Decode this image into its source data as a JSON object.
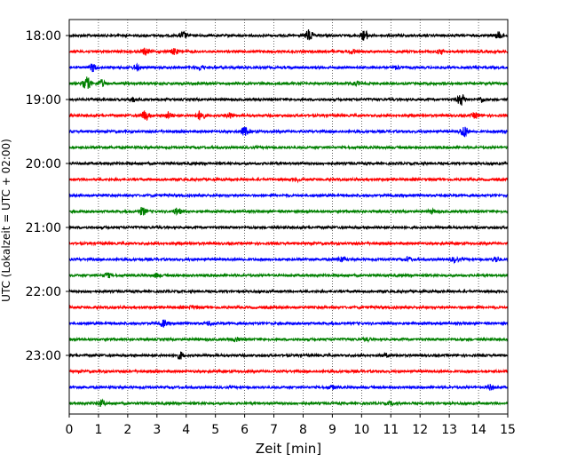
{
  "chart_data": {
    "type": "line",
    "title": "",
    "xlabel": "Zeit  [min]",
    "ylabel": "UTC (Lokalzeit = UTC + 02:00)",
    "xlim": [
      0,
      15
    ],
    "x_ticks": [
      "0",
      "1",
      "2",
      "3",
      "4",
      "5",
      "6",
      "7",
      "8",
      "9",
      "10",
      "11",
      "12",
      "13",
      "14",
      "15"
    ],
    "y_ticks": [
      {
        "label": "18:00",
        "row": 0
      },
      {
        "label": "19:00",
        "row": 4
      },
      {
        "label": "20:00",
        "row": 8
      },
      {
        "label": "21:00",
        "row": 12
      },
      {
        "label": "22:00",
        "row": 16
      },
      {
        "label": "23:00",
        "row": 20
      }
    ],
    "grid": "vertical dotted",
    "row_colors": [
      "#000000",
      "#ff0000",
      "#0000ff",
      "#008000"
    ],
    "rows": [
      {
        "start": "18:00",
        "color": "#000000",
        "events": [
          [
            3.9,
            0.4
          ],
          [
            8.2,
            0.7
          ],
          [
            10.1,
            0.6
          ],
          [
            14.7,
            0.4
          ]
        ]
      },
      {
        "start": "18:15",
        "color": "#ff0000",
        "events": [
          [
            2.6,
            0.4
          ],
          [
            3.6,
            0.35
          ],
          [
            9.7,
            0.25
          ],
          [
            12.7,
            0.25
          ]
        ]
      },
      {
        "start": "18:30",
        "color": "#0000ff",
        "events": [
          [
            0.8,
            0.45
          ],
          [
            2.3,
            0.3
          ],
          [
            4.5,
            0.25
          ],
          [
            11.2,
            0.2
          ]
        ]
      },
      {
        "start": "18:45",
        "color": "#008000",
        "events": [
          [
            0.6,
            0.8
          ],
          [
            1.1,
            0.4
          ],
          [
            9.8,
            0.2
          ]
        ]
      },
      {
        "start": "19:00",
        "color": "#000000",
        "events": [
          [
            2.2,
            0.25
          ],
          [
            13.4,
            0.7
          ],
          [
            14.1,
            0.3
          ]
        ]
      },
      {
        "start": "19:15",
        "color": "#ff0000",
        "events": [
          [
            2.6,
            0.6
          ],
          [
            3.4,
            0.4
          ],
          [
            4.5,
            0.6
          ],
          [
            5.5,
            0.3
          ],
          [
            13.9,
            0.3
          ]
        ]
      },
      {
        "start": "19:30",
        "color": "#0000ff",
        "events": [
          [
            6.0,
            0.5
          ],
          [
            13.5,
            0.7
          ],
          [
            14.9,
            0.2
          ]
        ]
      },
      {
        "start": "19:45",
        "color": "#008000",
        "events": []
      },
      {
        "start": "20:00",
        "color": "#000000",
        "events": []
      },
      {
        "start": "20:15",
        "color": "#ff0000",
        "events": [
          [
            7.8,
            0.15
          ]
        ]
      },
      {
        "start": "20:30",
        "color": "#0000ff",
        "events": []
      },
      {
        "start": "20:45",
        "color": "#008000",
        "events": [
          [
            2.5,
            0.45
          ],
          [
            3.7,
            0.4
          ],
          [
            12.4,
            0.2
          ]
        ]
      },
      {
        "start": "21:00",
        "color": "#000000",
        "events": []
      },
      {
        "start": "21:15",
        "color": "#ff0000",
        "events": []
      },
      {
        "start": "21:30",
        "color": "#0000ff",
        "events": [
          [
            9.3,
            0.3
          ],
          [
            11.6,
            0.25
          ],
          [
            13.2,
            0.3
          ],
          [
            14.6,
            0.35
          ]
        ]
      },
      {
        "start": "21:45",
        "color": "#008000",
        "events": [
          [
            1.3,
            0.25
          ],
          [
            3.0,
            0.2
          ]
        ]
      },
      {
        "start": "22:00",
        "color": "#000000",
        "events": []
      },
      {
        "start": "22:15",
        "color": "#ff0000",
        "events": [
          [
            4.2,
            0.15
          ]
        ]
      },
      {
        "start": "22:30",
        "color": "#0000ff",
        "events": [
          [
            3.2,
            0.4
          ],
          [
            4.8,
            0.25
          ]
        ]
      },
      {
        "start": "22:45",
        "color": "#008000",
        "events": [
          [
            5.7,
            0.25
          ],
          [
            10.2,
            0.15
          ]
        ]
      },
      {
        "start": "23:00",
        "color": "#000000",
        "events": [
          [
            3.8,
            0.4
          ],
          [
            10.8,
            0.2
          ]
        ]
      },
      {
        "start": "23:15",
        "color": "#ff0000",
        "events": []
      },
      {
        "start": "23:30",
        "color": "#0000ff",
        "events": [
          [
            9.0,
            0.2
          ],
          [
            14.4,
            0.3
          ]
        ]
      },
      {
        "start": "23:45",
        "color": "#008000",
        "events": [
          [
            1.1,
            0.35
          ],
          [
            11.0,
            0.15
          ]
        ]
      }
    ]
  }
}
